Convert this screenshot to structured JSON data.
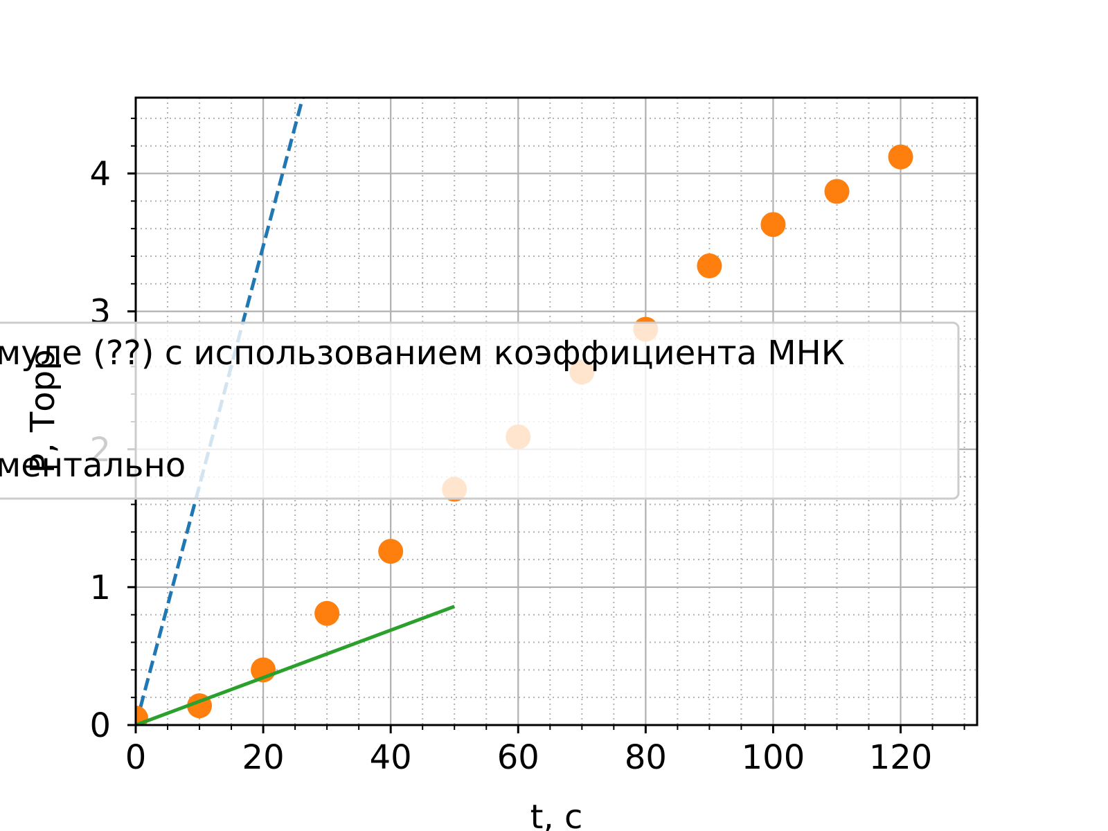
{
  "chart_data": {
    "type": "scatter",
    "xlabel": "t, с",
    "ylabel": "P, Торр",
    "xlim": [
      0,
      132
    ],
    "ylim": [
      0,
      4.55
    ],
    "xticks": [
      0,
      20,
      40,
      60,
      80,
      100,
      120
    ],
    "yticks": [
      0,
      1,
      2,
      3,
      4
    ],
    "x_minor_step": 5,
    "y_minor_step": 0.2,
    "grid": true,
    "legend_placement": "center (partially cut off on the left)",
    "series": [
      {
        "name": "...муле (??) с использованием коэффициента МНК",
        "kind": "line",
        "style": "dashed",
        "color": "#1f77b4",
        "x": [
          0,
          30
        ],
        "y": [
          0,
          5.21
        ]
      },
      {
        "name": "...ментально",
        "kind": "points",
        "color": "#ff7f0e",
        "x": [
          0,
          10,
          20,
          30,
          40,
          50,
          60,
          70,
          80,
          90,
          100,
          110,
          120
        ],
        "y": [
          0.05,
          0.14,
          0.4,
          0.81,
          1.26,
          1.71,
          2.09,
          2.56,
          2.87,
          3.33,
          3.63,
          3.87,
          4.12
        ]
      },
      {
        "name": "",
        "kind": "line",
        "style": "solid",
        "color": "#2ca02c",
        "x": [
          0,
          50
        ],
        "y": [
          0,
          0.86
        ]
      }
    ],
    "legend": {
      "entries": [
        "муле (??) с использованием коэффициента МНК",
        "ментально"
      ]
    }
  }
}
